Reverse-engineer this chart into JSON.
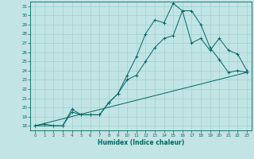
{
  "xlabel": "Humidex (Indice chaleur)",
  "xlim": [
    -0.5,
    23.5
  ],
  "ylim": [
    17.5,
    31.5
  ],
  "yticks": [
    18,
    19,
    20,
    21,
    22,
    23,
    24,
    25,
    26,
    27,
    28,
    29,
    30,
    31
  ],
  "xticks": [
    0,
    1,
    2,
    3,
    4,
    5,
    6,
    7,
    8,
    9,
    10,
    11,
    12,
    13,
    14,
    15,
    16,
    17,
    18,
    19,
    20,
    21,
    22,
    23
  ],
  "bg_color": "#c2e4e4",
  "grid_color": "#a0d0d0",
  "line_color": "#006666",
  "line1_x": [
    0,
    1,
    2,
    3,
    4,
    5,
    6,
    7,
    8,
    9,
    10,
    11,
    12,
    13,
    14,
    15,
    16,
    17,
    18,
    19,
    20,
    21,
    22,
    23
  ],
  "line1_y": [
    18.0,
    18.2,
    18.0,
    18.0,
    19.8,
    19.2,
    19.2,
    19.2,
    20.5,
    21.5,
    23.5,
    25.5,
    28.0,
    29.5,
    29.2,
    31.3,
    30.5,
    30.5,
    29.0,
    26.5,
    25.2,
    23.8,
    24.0,
    23.8
  ],
  "line2_x": [
    0,
    3,
    4,
    5,
    6,
    7,
    8,
    9,
    10,
    11,
    12,
    13,
    14,
    15,
    16,
    17,
    18,
    19,
    20,
    21,
    22,
    23
  ],
  "line2_y": [
    18.0,
    18.0,
    19.5,
    19.2,
    19.2,
    19.2,
    20.5,
    21.5,
    23.0,
    23.5,
    25.0,
    26.5,
    27.5,
    27.8,
    30.5,
    27.0,
    27.5,
    26.2,
    27.5,
    26.2,
    25.8,
    24.0
  ],
  "line3_x": [
    0,
    23
  ],
  "line3_y": [
    18.0,
    23.8
  ]
}
